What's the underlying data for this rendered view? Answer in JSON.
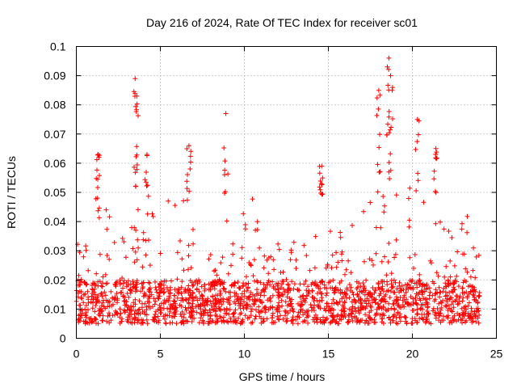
{
  "chart_data": {
    "type": "scatter",
    "title": "Day 216 of 2024, Rate Of TEC Index for receiver sc01",
    "xlabel": "GPS time / hours",
    "ylabel": "ROTI / TECUs",
    "xlim": [
      0,
      25
    ],
    "ylim": [
      0,
      0.1
    ],
    "xticks": [
      0,
      5,
      10,
      15,
      20,
      25
    ],
    "xtick_labels": [
      "0",
      "5",
      "10",
      "15",
      "20",
      "25"
    ],
    "yticks": [
      0,
      0.01,
      0.02,
      0.03,
      0.04,
      0.05,
      0.06,
      0.07,
      0.08,
      0.09,
      0.1
    ],
    "ytick_labels": [
      "0",
      "0.01",
      "0.02",
      "0.03",
      "0.04",
      "0.05",
      "0.06",
      "0.07",
      "0.08",
      "0.09",
      "0.1"
    ],
    "grid": true,
    "marker": "+",
    "color": "#ff0000",
    "series": [
      {
        "name": "ROTI",
        "x_range": [
          0,
          24
        ],
        "baseline_range": [
          0.005,
          0.02
        ],
        "envelope": {
          "x": [
            0,
            0.5,
            1,
            1.5,
            2,
            2.5,
            3,
            3.5,
            4,
            4.5,
            5,
            5.5,
            6,
            6.5,
            7,
            7.5,
            8,
            8.5,
            9,
            9.5,
            10,
            10.5,
            11,
            11.5,
            12,
            12.5,
            13,
            13.5,
            14,
            14.5,
            15,
            15.5,
            16,
            16.5,
            17,
            17.5,
            18,
            18.5,
            19,
            19.5,
            20,
            20.5,
            21,
            21.5,
            22,
            22.5,
            23,
            23.5,
            24
          ],
          "y": [
            0.035,
            0.03,
            0.045,
            0.055,
            0.045,
            0.03,
            0.045,
            0.05,
            0.045,
            0.045,
            0.04,
            0.05,
            0.045,
            0.05,
            0.04,
            0.03,
            0.03,
            0.025,
            0.04,
            0.05,
            0.045,
            0.052,
            0.035,
            0.03,
            0.035,
            0.032,
            0.035,
            0.04,
            0.045,
            0.05,
            0.045,
            0.04,
            0.035,
            0.04,
            0.045,
            0.05,
            0.05,
            0.055,
            0.05,
            0.045,
            0.06,
            0.05,
            0.055,
            0.045,
            0.04,
            0.035,
            0.04,
            0.045,
            0.03
          ]
        },
        "spikes": [
          {
            "x": 1.3,
            "y": 0.063
          },
          {
            "x": 3.5,
            "y": 0.089
          },
          {
            "x": 3.6,
            "y": 0.083
          },
          {
            "x": 4.2,
            "y": 0.063
          },
          {
            "x": 6.7,
            "y": 0.066
          },
          {
            "x": 8.9,
            "y": 0.077
          },
          {
            "x": 14.6,
            "y": 0.059
          },
          {
            "x": 18.0,
            "y": 0.085
          },
          {
            "x": 18.6,
            "y": 0.096
          },
          {
            "x": 18.7,
            "y": 0.09
          },
          {
            "x": 20.3,
            "y": 0.075
          },
          {
            "x": 21.4,
            "y": 0.065
          }
        ]
      }
    ]
  }
}
